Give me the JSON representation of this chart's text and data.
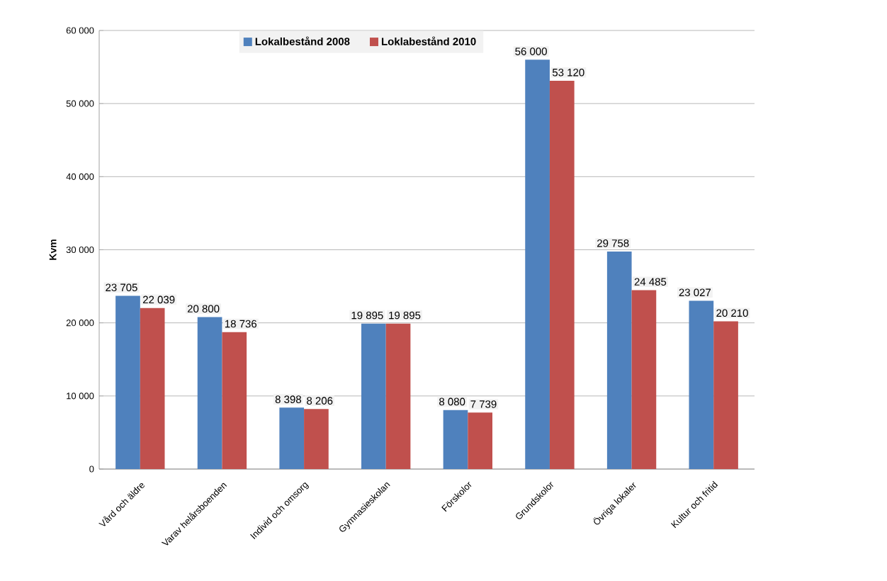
{
  "chart_data": {
    "type": "bar",
    "ylabel": "Kvm",
    "categories": [
      "Vård och äldre",
      "Varav helårsboenden",
      "Individ och omsorg",
      "Gymnasieskolan",
      "Förskolor",
      "Grundskolor",
      "Övriga lokaler",
      "Kultur och fritid"
    ],
    "series": [
      {
        "name": "Lokalbestånd 2008",
        "color": "#4f81bd",
        "values": [
          23705,
          20800,
          8398,
          19895,
          8080,
          56000,
          29758,
          23027
        ],
        "value_labels": [
          "23 705",
          "20 800",
          "8 398",
          "19 895",
          "8 080",
          "56 000",
          "29 758",
          "23 027"
        ]
      },
      {
        "name": "Loklabestånd 2010",
        "color": "#c0504d",
        "values": [
          22039,
          18736,
          8206,
          19895,
          7739,
          53120,
          24485,
          20210
        ],
        "value_labels": [
          "22 039",
          "18 736",
          "8 206",
          "19 895",
          "7 739",
          "53 120",
          "24 485",
          "20 210"
        ]
      }
    ],
    "ylim": [
      0,
      60000
    ],
    "yticks": [
      {
        "value": 0,
        "label": "0"
      },
      {
        "value": 10000,
        "label": "10 000"
      },
      {
        "value": 20000,
        "label": "20 000"
      },
      {
        "value": 30000,
        "label": "30 000"
      },
      {
        "value": 40000,
        "label": "40 000"
      },
      {
        "value": 50000,
        "label": "50 000"
      },
      {
        "value": 60000,
        "label": "60 000"
      }
    ],
    "grid": "y",
    "legend": "top"
  }
}
